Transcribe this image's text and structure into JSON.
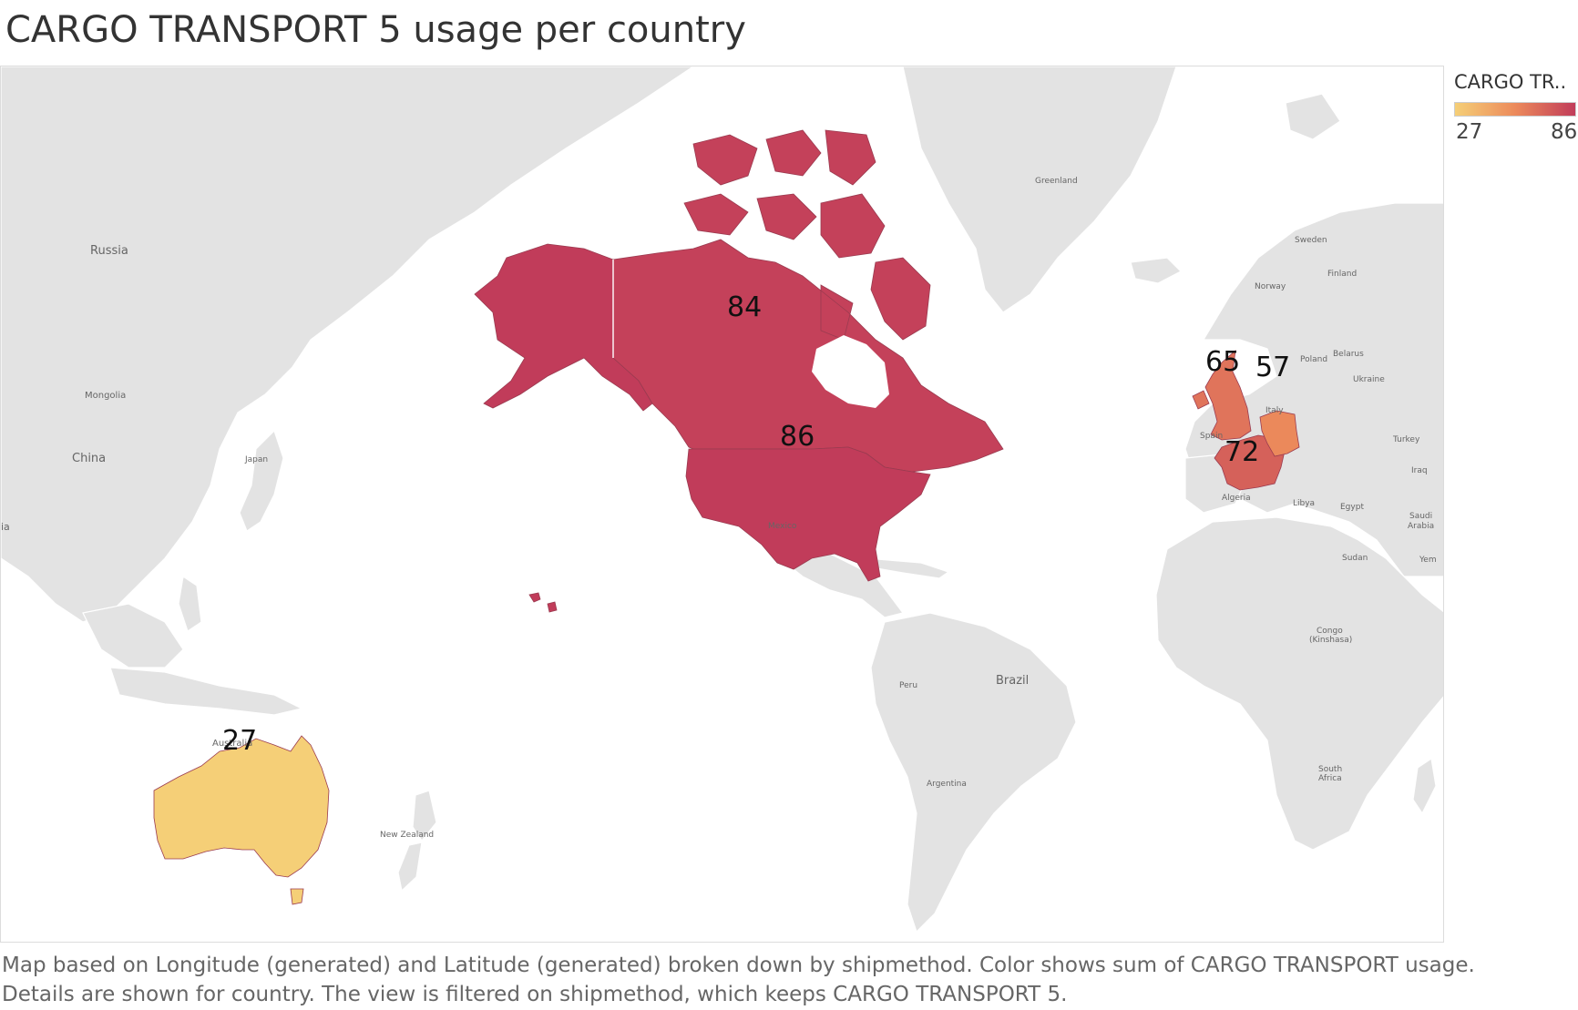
{
  "title": "CARGO TRANSPORT 5 usage per country",
  "legend": {
    "title": "CARGO TR..",
    "min_label": "27",
    "max_label": "86",
    "min_color": "#f5cf77",
    "mid_color": "#ec8a5b",
    "max_color": "#c13c5a"
  },
  "caption": {
    "line1": "Map based on Longitude (generated) and Latitude (generated) broken down by shipmethod.  Color shows sum of CARGO TRANSPORT usage.",
    "line2": "Details are shown for country. The view is filtered on shipmethod, which keeps CARGO TRANSPORT 5."
  },
  "map_labels": {
    "russia": "Russia",
    "mongolia": "Mongolia",
    "china": "China",
    "japan": "Japan",
    "greenland": "Greenland",
    "sweden": "Sweden",
    "finland": "Finland",
    "norway": "Norway",
    "belarus": "Belarus",
    "poland": "Poland",
    "ukraine": "Ukraine",
    "italy": "Italy",
    "spain": "Spain",
    "turkey": "Turkey",
    "iraq": "Iraq",
    "algeria": "Algeria",
    "libya": "Libya",
    "egypt": "Egypt",
    "saudi_arabia_1": "Saudi",
    "saudi_arabia_2": "Arabia",
    "yemen": "Yem",
    "india_partial": "ia",
    "sudan": "Sudan",
    "congo_1": "Congo",
    "congo_2": "(Kinshasa)",
    "mexico": "Mexico",
    "brazil": "Brazil",
    "peru": "Peru",
    "argentina": "Argentina",
    "south_africa_1": "South",
    "south_africa_2": "Africa",
    "new_zealand": "New Zealand",
    "australia": "Australia"
  },
  "chart_data": {
    "type": "choropleth",
    "measure": "CARGO TRANSPORT usage",
    "color_range": [
      27,
      86
    ],
    "countries": [
      {
        "key": "usa",
        "value": 86
      },
      {
        "key": "canada",
        "value": 84
      },
      {
        "key": "france",
        "value": 72
      },
      {
        "key": "uk",
        "value": 65
      },
      {
        "key": "germany",
        "value": 57
      },
      {
        "key": "australia",
        "value": 27
      }
    ]
  }
}
